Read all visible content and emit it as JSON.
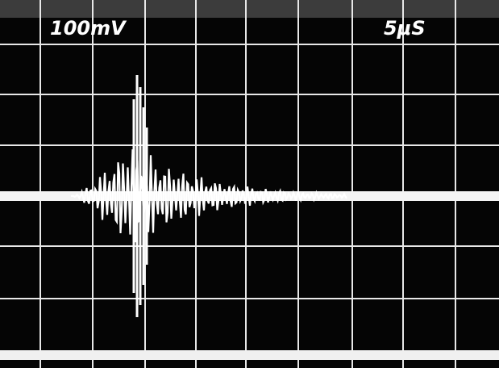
{
  "screen": {
    "volts_per_div": "100mV",
    "time_per_div": "5μS"
  }
}
